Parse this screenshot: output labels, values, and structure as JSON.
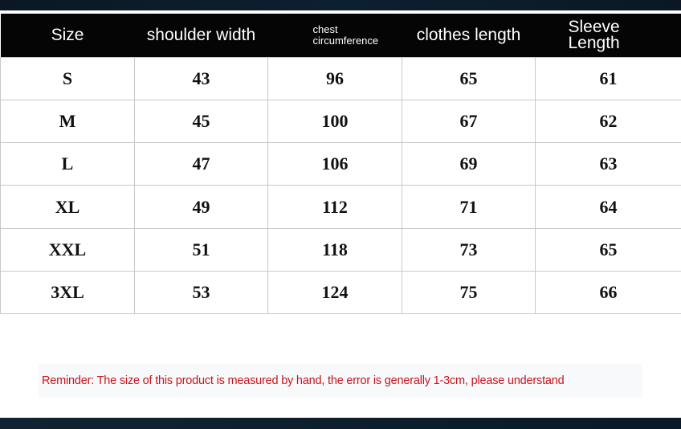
{
  "table": {
    "headers": [
      "Size",
      "shoulder width",
      "chest circumference",
      "clothes length",
      "Sleeve Length"
    ],
    "rows": [
      [
        "S",
        "43",
        "96",
        "65",
        "61"
      ],
      [
        "M",
        "45",
        "100",
        "67",
        "62"
      ],
      [
        "L",
        "47",
        "106",
        "69",
        "63"
      ],
      [
        "XL",
        "49",
        "112",
        "71",
        "64"
      ],
      [
        "XXL",
        "51",
        "118",
        "73",
        "65"
      ],
      [
        "3XL",
        "53",
        "124",
        "75",
        "66"
      ]
    ]
  },
  "reminder": "Reminder: The size of this product is measured by hand, the error is generally 1-3cm, please understand",
  "colors": {
    "header_bg": "#050505",
    "reminder_text": "#c4161c"
  }
}
